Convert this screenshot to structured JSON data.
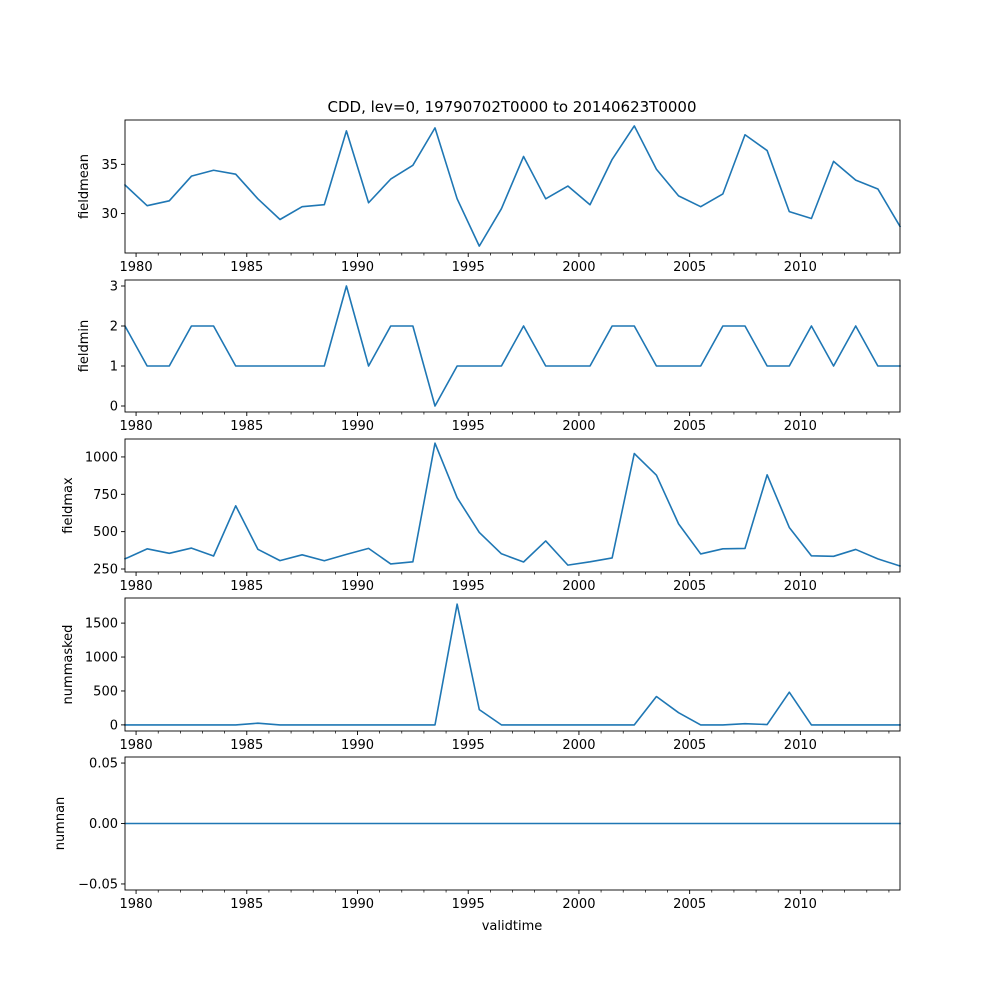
{
  "chart_data": {
    "type": "line",
    "title": "CDD, lev=0, 19790702T0000 to 20140623T0000",
    "xlabel": "validtime",
    "xlim": [
      1979.5,
      2014.5
    ],
    "x_major_ticks": [
      1980,
      1985,
      1990,
      1995,
      2000,
      2005,
      2010
    ],
    "x_minor_tick_step": 1,
    "x": [
      1979.5,
      1980.5,
      1981.5,
      1982.5,
      1983.5,
      1984.5,
      1985.5,
      1986.5,
      1987.5,
      1988.5,
      1989.5,
      1990.5,
      1991.5,
      1992.5,
      1993.5,
      1994.5,
      1995.5,
      1996.5,
      1997.5,
      1998.5,
      1999.5,
      2000.5,
      2001.5,
      2002.5,
      2003.5,
      2004.5,
      2005.5,
      2006.5,
      2007.5,
      2008.5,
      2009.5,
      2010.5,
      2011.5,
      2012.5,
      2013.5,
      2014.5
    ],
    "color": "#1f77b4",
    "grid": false,
    "subplots": [
      {
        "ylabel": "fieldmean",
        "ylim": [
          26.0,
          39.5
        ],
        "yticks": [
          30,
          35
        ],
        "ytick_labels": [
          "30",
          "35"
        ],
        "values": [
          32.9,
          30.8,
          31.3,
          33.8,
          34.4,
          34.0,
          31.5,
          29.4,
          30.7,
          30.9,
          38.4,
          31.1,
          33.5,
          34.9,
          38.7,
          31.5,
          26.7,
          30.5,
          35.8,
          31.5,
          32.8,
          30.9,
          35.5,
          38.9,
          34.5,
          31.8,
          30.7,
          32.0,
          38.0,
          36.4,
          30.2,
          29.5,
          35.3,
          33.4,
          32.5,
          28.7
        ]
      },
      {
        "ylabel": "fieldmin",
        "ylim": [
          -0.15,
          3.15
        ],
        "yticks": [
          0,
          1,
          2,
          3
        ],
        "ytick_labels": [
          "0",
          "1",
          "2",
          "3"
        ],
        "values": [
          2,
          1,
          1,
          2,
          2,
          1,
          1,
          1,
          1,
          1,
          3,
          1,
          2,
          2,
          0,
          1,
          1,
          1,
          2,
          1,
          1,
          1,
          2,
          2,
          1,
          1,
          1,
          2,
          2,
          1,
          1,
          2,
          1,
          2,
          1,
          1
        ]
      },
      {
        "ylabel": "fieldmax",
        "ylim": [
          230,
          1120
        ],
        "yticks": [
          250,
          500,
          750,
          1000
        ],
        "ytick_labels": [
          "250",
          "500",
          "750",
          "1000"
        ],
        "values": [
          318,
          385,
          355,
          390,
          337,
          673,
          382,
          306,
          345,
          305,
          348,
          388,
          284,
          298,
          1092,
          727,
          495,
          352,
          297,
          438,
          276,
          298,
          324,
          1023,
          878,
          552,
          351,
          385,
          388,
          880,
          528,
          338,
          335,
          381,
          318,
          270
        ]
      },
      {
        "ylabel": "nummasked",
        "ylim": [
          -90,
          1870
        ],
        "yticks": [
          0,
          500,
          1000,
          1500
        ],
        "ytick_labels": [
          "0",
          "500",
          "1000",
          "1500"
        ],
        "values": [
          0,
          0,
          0,
          0,
          0,
          0,
          25,
          0,
          0,
          0,
          0,
          0,
          0,
          0,
          0,
          1780,
          225,
          0,
          0,
          0,
          0,
          0,
          0,
          0,
          418,
          180,
          0,
          0,
          18,
          5,
          482,
          0,
          0,
          0,
          0,
          0
        ]
      },
      {
        "ylabel": "numnan",
        "ylim": [
          -0.055,
          0.055
        ],
        "yticks": [
          -0.05,
          0.0,
          0.05
        ],
        "ytick_labels": [
          "−0.05",
          "0.00",
          "0.05"
        ],
        "values": [
          0,
          0,
          0,
          0,
          0,
          0,
          0,
          0,
          0,
          0,
          0,
          0,
          0,
          0,
          0,
          0,
          0,
          0,
          0,
          0,
          0,
          0,
          0,
          0,
          0,
          0,
          0,
          0,
          0,
          0,
          0,
          0,
          0,
          0,
          0,
          0
        ]
      }
    ]
  }
}
